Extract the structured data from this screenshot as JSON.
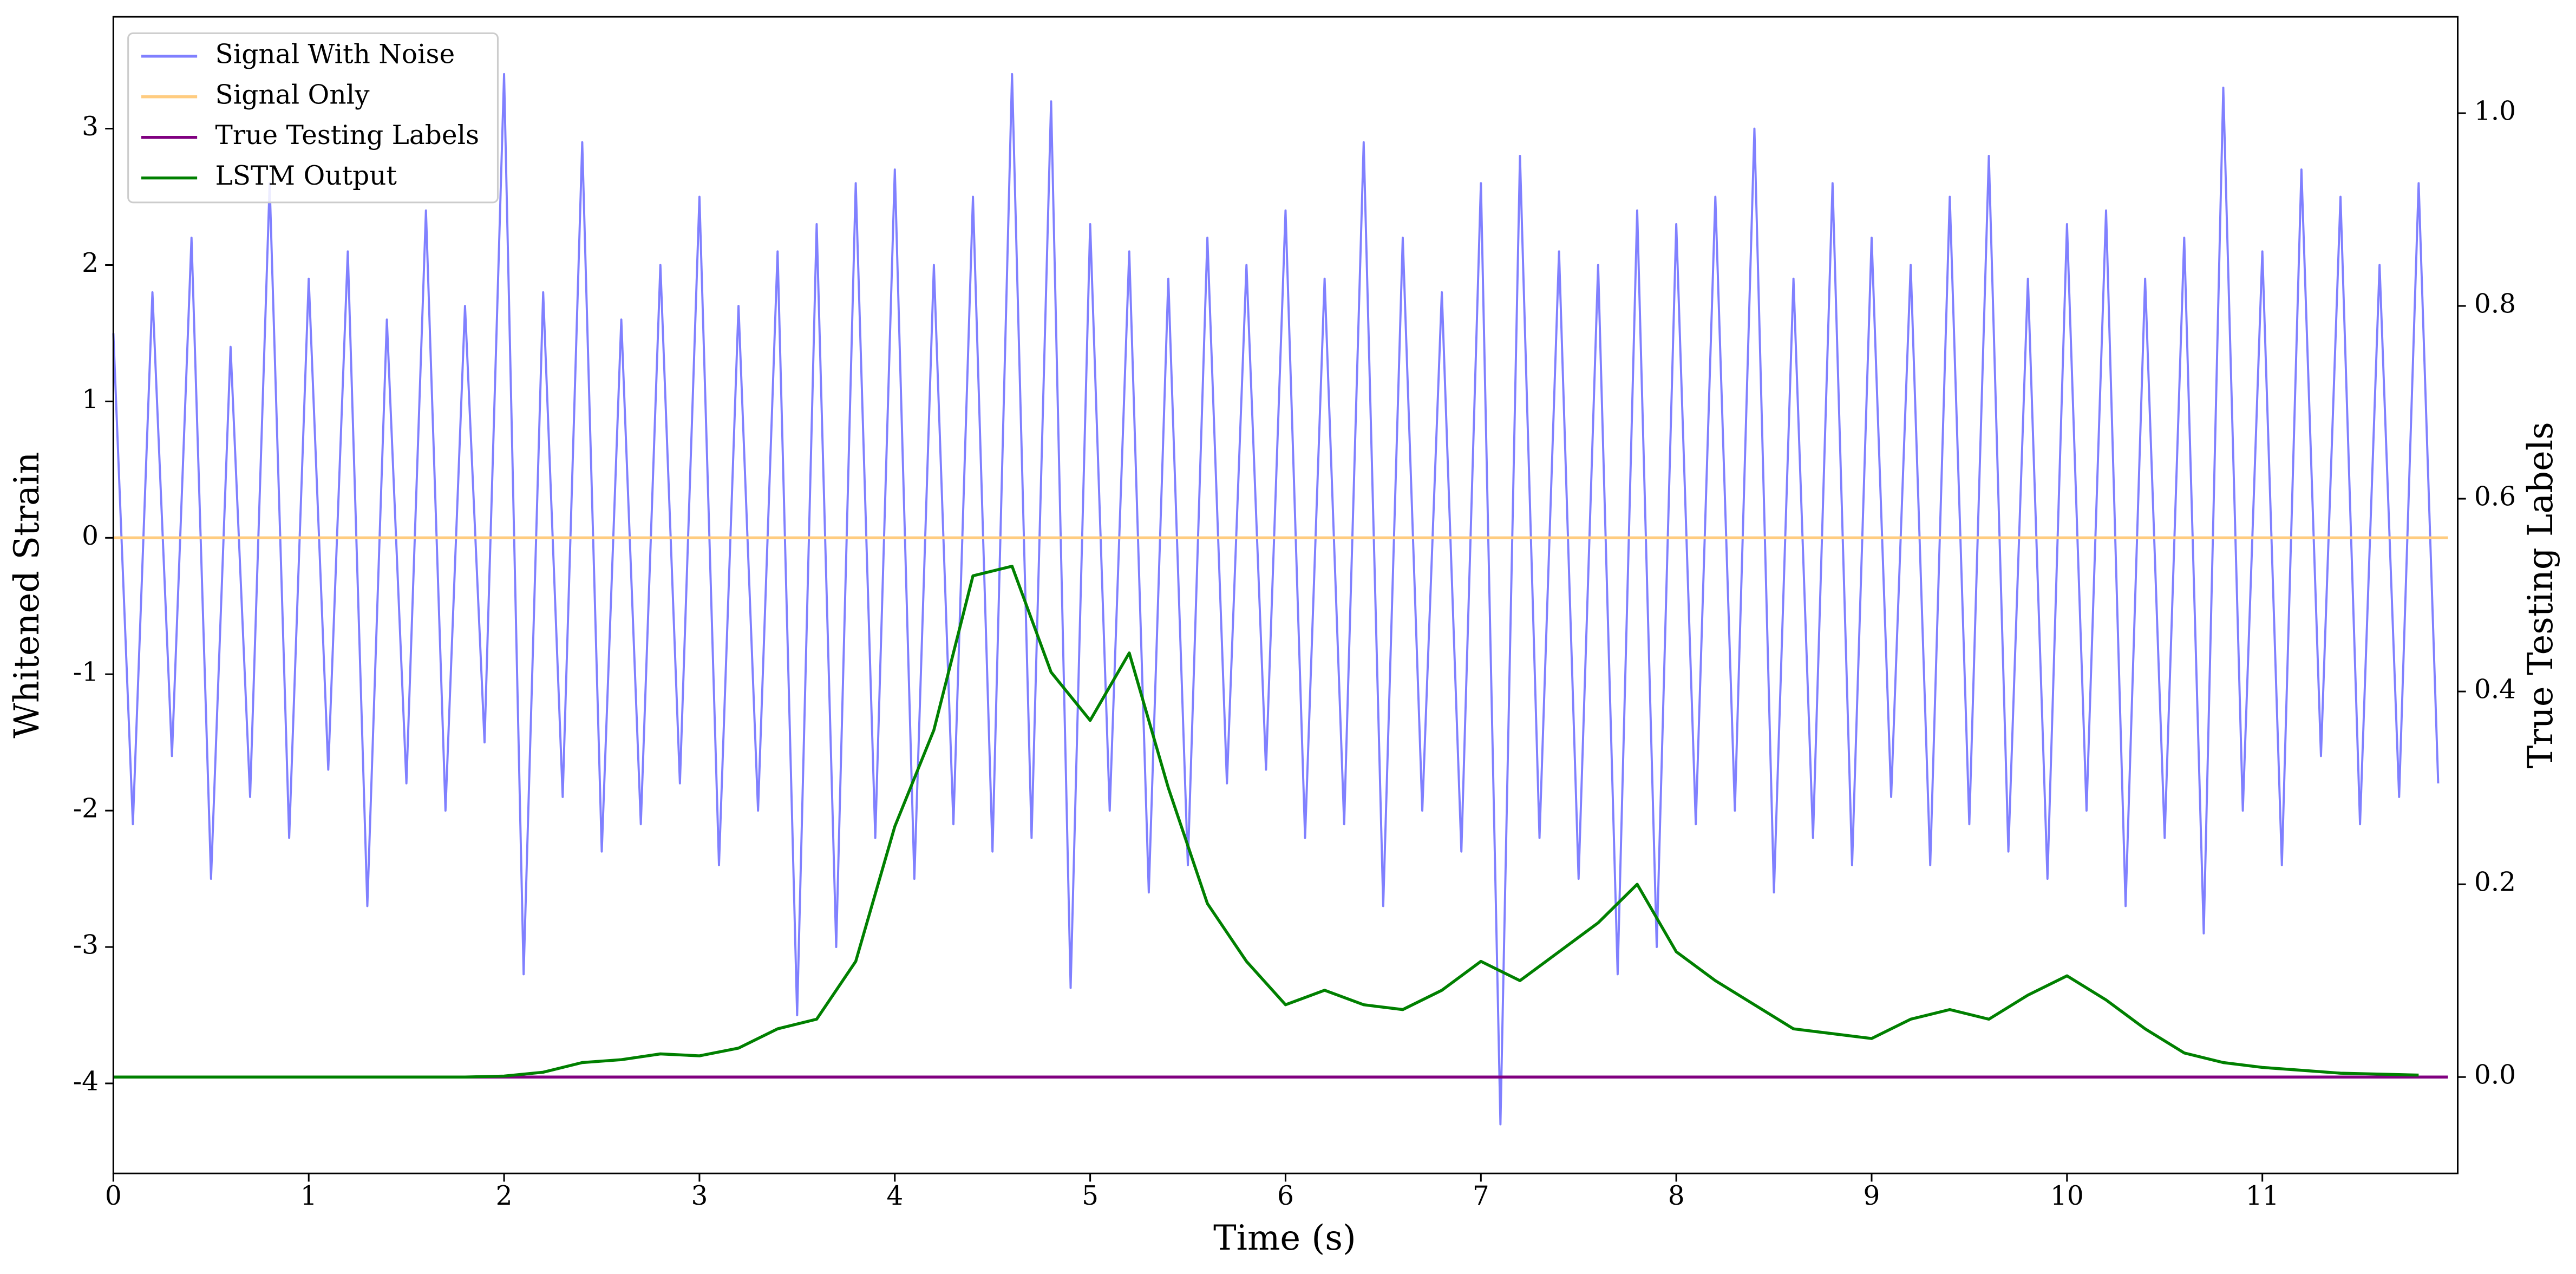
{
  "chart_data": {
    "type": "line",
    "xlabel": "Time (s)",
    "ylabel": "Whitened Strain",
    "y2label": "True Testing Labels",
    "xlim": [
      0,
      12
    ],
    "xticks": [
      0,
      1,
      2,
      3,
      4,
      5,
      6,
      7,
      8,
      9,
      10,
      11
    ],
    "ylim": [
      -4.66,
      3.82
    ],
    "yticks": [
      -4,
      -3,
      -2,
      -1,
      0,
      1,
      2,
      3
    ],
    "y2lim": [
      -0.1,
      1.1
    ],
    "y2ticks": [
      {
        "value": 0,
        "label": "0.0"
      },
      {
        "value": 0.2,
        "label": "0.2"
      },
      {
        "value": 0.4,
        "label": "0.4"
      },
      {
        "value": 0.6,
        "label": "0.6"
      },
      {
        "value": 0.8,
        "label": "0.8"
      },
      {
        "value": 1,
        "label": "1.0"
      }
    ],
    "legend": "upper left",
    "series": [
      {
        "name": "Signal With Noise",
        "color": "#8080ff",
        "axis": "y",
        "x": [
          0,
          0.1,
          0.2,
          0.3,
          0.4,
          0.5,
          0.6,
          0.7,
          0.8,
          0.9,
          1,
          1.1,
          1.2,
          1.3,
          1.4,
          1.5,
          1.6,
          1.7,
          1.8,
          1.9,
          2,
          2.1,
          2.2,
          2.3,
          2.4,
          2.5,
          2.6,
          2.7,
          2.8,
          2.9,
          3,
          3.1,
          3.2,
          3.3,
          3.4,
          3.5,
          3.6,
          3.7,
          3.8,
          3.9,
          4,
          4.1,
          4.2,
          4.3,
          4.4,
          4.5,
          4.6,
          4.7,
          4.8,
          4.9,
          5,
          5.1,
          5.2,
          5.3,
          5.4,
          5.5,
          5.6,
          5.7,
          5.8,
          5.9,
          6,
          6.1,
          6.2,
          6.3,
          6.4,
          6.5,
          6.6,
          6.7,
          6.8,
          6.9,
          7,
          7.1,
          7.2,
          7.3,
          7.4,
          7.5,
          7.6,
          7.7,
          7.8,
          7.9,
          8,
          8.1,
          8.2,
          8.3,
          8.4,
          8.5,
          8.6,
          8.7,
          8.8,
          8.9,
          9,
          9.1,
          9.2,
          9.3,
          9.4,
          9.5,
          9.6,
          9.7,
          9.8,
          9.9,
          10,
          10.1,
          10.2,
          10.3,
          10.4,
          10.5,
          10.6,
          10.7,
          10.8,
          10.9,
          11,
          11.1,
          11.2,
          11.3,
          11.4,
          11.5,
          11.6,
          11.7,
          11.8,
          11.9
        ],
        "values": [
          1.5,
          -2.1,
          1.8,
          -1.6,
          2.2,
          -2.5,
          1.4,
          -1.9,
          2.6,
          -2.2,
          1.9,
          -1.7,
          2.1,
          -2.7,
          1.6,
          -1.8,
          2.4,
          -2.0,
          1.7,
          -1.5,
          3.4,
          -3.2,
          1.8,
          -1.9,
          2.9,
          -2.3,
          1.6,
          -2.1,
          2.0,
          -1.8,
          2.5,
          -2.4,
          1.7,
          -2.0,
          2.1,
          -3.5,
          2.3,
          -3.0,
          2.6,
          -2.2,
          2.7,
          -2.5,
          2.0,
          -2.1,
          2.5,
          -2.3,
          3.4,
          -2.2,
          3.2,
          -3.3,
          2.3,
          -2.0,
          2.1,
          -2.6,
          1.9,
          -2.4,
          2.2,
          -1.8,
          2.0,
          -1.7,
          2.4,
          -2.2,
          1.9,
          -2.1,
          2.9,
          -2.7,
          2.2,
          -2.0,
          1.8,
          -2.3,
          2.6,
          -4.3,
          2.8,
          -2.2,
          2.1,
          -2.5,
          2.0,
          -3.2,
          2.4,
          -3.0,
          2.3,
          -2.1,
          2.5,
          -2.0,
          3.0,
          -2.6,
          1.9,
          -2.2,
          2.6,
          -2.4,
          2.2,
          -1.9,
          2.0,
          -2.4,
          2.5,
          -2.1,
          2.8,
          -2.3,
          1.9,
          -2.5,
          2.3,
          -2.0,
          2.4,
          -2.7,
          1.9,
          -2.2,
          2.2,
          -2.9,
          3.3,
          -2.0,
          2.1,
          -2.4,
          2.7,
          -1.6,
          2.5,
          -2.1,
          2.0,
          -1.9,
          2.6,
          -1.8
        ]
      },
      {
        "name": "Signal Only",
        "color": "#ffcc80",
        "axis": "y",
        "x": [
          0,
          11.95
        ],
        "values": [
          0,
          0
        ]
      },
      {
        "name": "True Testing Labels",
        "color": "#800080",
        "axis": "y2",
        "x": [
          0,
          11.95
        ],
        "values": [
          0,
          0
        ]
      },
      {
        "name": "LSTM Output",
        "color": "#008000",
        "axis": "y2",
        "x": [
          0,
          0.2,
          0.4,
          0.6,
          0.8,
          1,
          1.2,
          1.4,
          1.6,
          1.8,
          2,
          2.2,
          2.4,
          2.6,
          2.8,
          3,
          3.2,
          3.4,
          3.6,
          3.8,
          4,
          4.2,
          4.4,
          4.6,
          4.8,
          5,
          5.2,
          5.4,
          5.6,
          5.8,
          6,
          6.2,
          6.4,
          6.6,
          6.8,
          7,
          7.2,
          7.4,
          7.6,
          7.8,
          8,
          8.2,
          8.4,
          8.6,
          8.8,
          9,
          9.2,
          9.4,
          9.6,
          9.8,
          10,
          10.2,
          10.4,
          10.6,
          10.8,
          11,
          11.2,
          11.4,
          11.6,
          11.8
        ],
        "values": [
          0,
          0,
          0,
          0,
          0,
          0,
          0,
          0,
          0,
          0,
          0.001,
          0.005,
          0.015,
          0.018,
          0.024,
          0.022,
          0.03,
          0.05,
          0.06,
          0.12,
          0.26,
          0.36,
          0.52,
          0.53,
          0.42,
          0.37,
          0.44,
          0.3,
          0.18,
          0.12,
          0.075,
          0.09,
          0.075,
          0.07,
          0.09,
          0.12,
          0.1,
          0.13,
          0.16,
          0.2,
          0.13,
          0.1,
          0.075,
          0.05,
          0.045,
          0.04,
          0.06,
          0.07,
          0.06,
          0.085,
          0.105,
          0.08,
          0.05,
          0.025,
          0.015,
          0.01,
          0.007,
          0.004,
          0.003,
          0.002
        ]
      }
    ]
  }
}
